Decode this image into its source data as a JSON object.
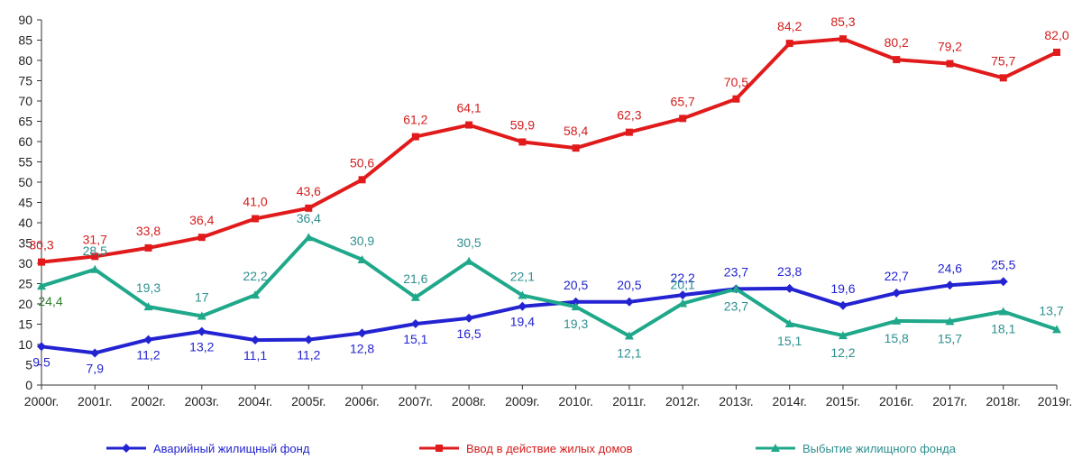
{
  "chart_data": {
    "type": "line",
    "title": "",
    "xlabel": "",
    "ylabel": "",
    "ylim": [
      0,
      90
    ],
    "ytick_step": 5,
    "grid": false,
    "legend_position": "bottom",
    "categories": [
      "2000г.",
      "2001г.",
      "2002г.",
      "2003г.",
      "2004г.",
      "2005г.",
      "2006г.",
      "2007г.",
      "2008г.",
      "2009г.",
      "2010г.",
      "2011г.",
      "2012г.",
      "2013г.",
      "2014г.",
      "2015г.",
      "2016г.",
      "2017г.",
      "2018г.",
      "2019г."
    ],
    "series": [
      {
        "name": "Аварийный жилищный фонд",
        "color": "#2323d2",
        "label_color": "#2323d2",
        "marker": "diamond",
        "values": [
          9.5,
          7.9,
          11.2,
          13.2,
          11.1,
          11.2,
          12.8,
          15.1,
          16.5,
          19.4,
          20.5,
          20.5,
          22.2,
          23.7,
          23.8,
          19.6,
          22.7,
          24.6,
          25.5,
          null
        ],
        "labels": [
          "9,5",
          "7,9",
          "11,2",
          "13,2",
          "11,1",
          "11,2",
          "12,8",
          "15,1",
          "16,5",
          "19,4",
          "20,5",
          "20,5",
          "22,2",
          "23,7",
          "23,8",
          "19,6",
          "22,7",
          "24,6",
          "25,5",
          ""
        ]
      },
      {
        "name": "Ввод в действие жилых домов",
        "color": "#e11b1b",
        "label_color": "#d41c1c",
        "marker": "square",
        "values": [
          30.3,
          31.7,
          33.8,
          36.4,
          41.0,
          43.6,
          50.6,
          61.2,
          64.1,
          59.9,
          58.4,
          62.3,
          65.7,
          70.5,
          84.2,
          85.3,
          80.2,
          79.2,
          75.7,
          82.0
        ],
        "labels": [
          "30,3",
          "31,7",
          "33,8",
          "36,4",
          "41,0",
          "43,6",
          "50,6",
          "61,2",
          "64,1",
          "59,9",
          "58,4",
          "62,3",
          "65,7",
          "70,5",
          "84,2",
          "85,3",
          "80,2",
          "79,2",
          "75,7",
          "82,0"
        ]
      },
      {
        "name": "Выбытие жилищного фонда",
        "color": "#1fa88a",
        "label_color": "#2e8f8f",
        "marker": "triangle",
        "values": [
          24.4,
          28.5,
          19.3,
          17,
          22.2,
          36.4,
          30.9,
          21.6,
          30.5,
          22.1,
          19.3,
          12.1,
          20.1,
          23.7,
          15.1,
          12.2,
          15.8,
          15.7,
          18.1,
          13.7
        ],
        "labels": [
          "24,4",
          "28,5",
          "19,3",
          "17",
          "22,2",
          "36,4",
          "30,9",
          "21,6",
          "30,5",
          "22,1",
          "19,3",
          "12,1",
          "20,1",
          "23,7",
          "15,1",
          "12,2",
          "15,8",
          "15,7",
          "18,1",
          "13,7"
        ]
      }
    ]
  }
}
